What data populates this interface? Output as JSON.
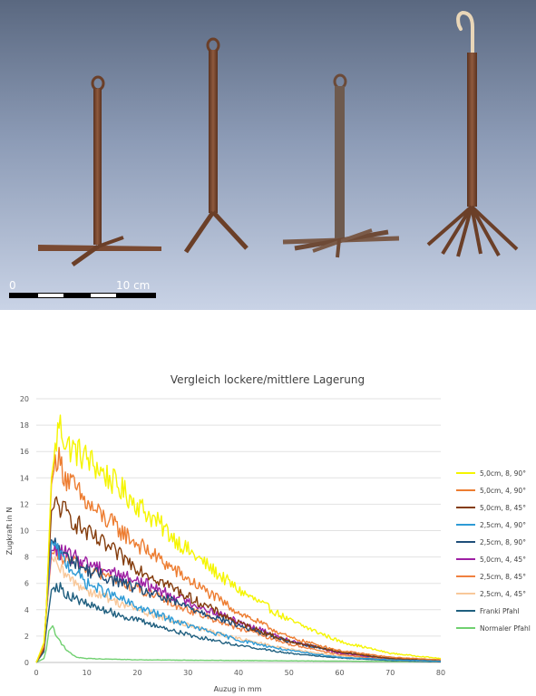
{
  "photo": {
    "scale_labels": [
      "0",
      "10 cm"
    ],
    "colors": {
      "background_top": "#5c6a82",
      "background_bottom": "#c9d3e6",
      "rod": "#7a4a32",
      "hook": "#e9d6b8"
    }
  },
  "chart_data": {
    "type": "line",
    "title": "Vergleich lockere/mittlere Lagerung",
    "xlabel": "Auzug in mm",
    "ylabel": "Zugkraft in N",
    "xlim": [
      0,
      80
    ],
    "ylim": [
      0,
      20
    ],
    "xticks": [
      "0",
      "10",
      "20",
      "30",
      "40",
      "50",
      "60",
      "70",
      "80"
    ],
    "yticks": [
      "0",
      "2",
      "4",
      "6",
      "8",
      "10",
      "12",
      "14",
      "16",
      "18",
      "20"
    ],
    "grid": true,
    "legend_position": "right",
    "series": [
      {
        "name": "5,0cm, 8, 90°",
        "color": "#f5f500",
        "x": [
          0,
          1.5,
          2,
          3,
          4.5,
          6,
          10,
          20,
          30,
          40,
          50,
          60,
          70,
          80
        ],
        "y": [
          0,
          1.5,
          4,
          14,
          18.2,
          16.5,
          15.5,
          12,
          8.5,
          5.5,
          3.2,
          1.6,
          0.7,
          0.3
        ]
      },
      {
        "name": "5,0cm, 4, 90°",
        "color": "#ed7d31",
        "x": [
          0,
          1.5,
          2,
          3,
          4,
          6,
          10,
          20,
          30,
          40,
          50,
          60,
          70,
          80
        ],
        "y": [
          0,
          1.2,
          4,
          13.5,
          15.7,
          14,
          12,
          9,
          6.3,
          3.8,
          1.9,
          0.9,
          0.4,
          0.2
        ]
      },
      {
        "name": "5,0cm, 8, 45°",
        "color": "#843c0c",
        "x": [
          0,
          1.5,
          2,
          3,
          4,
          6,
          10,
          20,
          30,
          40,
          50,
          60,
          70,
          80
        ],
        "y": [
          0,
          1,
          4,
          11.5,
          12,
          11.3,
          9.8,
          7.2,
          5,
          3,
          1.6,
          0.8,
          0.3,
          0.2
        ]
      },
      {
        "name": "2,5cm, 4, 90°",
        "color": "#2e9bd6",
        "x": [
          0,
          1.5,
          2,
          3,
          4,
          6,
          10,
          20,
          30,
          40,
          50,
          60,
          70,
          80
        ],
        "y": [
          0,
          1,
          4,
          9.2,
          8.5,
          7.5,
          6,
          4.2,
          2.8,
          1.7,
          0.9,
          0.4,
          0.2,
          0.1
        ]
      },
      {
        "name": "2,5cm, 8, 90°",
        "color": "#1f4e79",
        "x": [
          0,
          1.5,
          2,
          3,
          4,
          6,
          10,
          20,
          30,
          40,
          50,
          60,
          70,
          80
        ],
        "y": [
          0,
          1,
          4,
          9.3,
          8.8,
          8,
          7,
          5.6,
          4.2,
          2.8,
          1.6,
          0.8,
          0.3,
          0.1
        ]
      },
      {
        "name": "5,0cm, 4, 45°",
        "color": "#9e1fa3",
        "x": [
          0,
          1.5,
          2,
          3,
          4,
          6,
          10,
          20,
          30,
          40,
          50,
          60,
          70,
          80
        ],
        "y": [
          0,
          1,
          4,
          8.5,
          8.5,
          8.2,
          7.6,
          6.2,
          4.6,
          3.1,
          1.7,
          0.7,
          0.3,
          0.1
        ]
      },
      {
        "name": "2,5cm, 8, 45°",
        "color": "#f08040",
        "x": [
          0,
          1.5,
          2,
          3,
          4,
          6,
          10,
          20,
          30,
          40,
          50,
          60,
          70,
          80
        ],
        "y": [
          0,
          1,
          4,
          8.3,
          8.2,
          7.8,
          7.1,
          5.6,
          4,
          2.6,
          1.4,
          0.6,
          0.2,
          0.1
        ]
      },
      {
        "name": "2,5cm, 4, 45°",
        "color": "#f8c89a",
        "x": [
          0,
          1.5,
          2,
          3,
          4,
          6,
          10,
          20,
          30,
          40,
          50,
          60,
          70,
          80
        ],
        "y": [
          0,
          1,
          3.5,
          8,
          7.3,
          6.5,
          5.5,
          4,
          2.8,
          1.8,
          1,
          0.5,
          0.2,
          0.1
        ]
      },
      {
        "name": "Franki Pfahl",
        "color": "#1f5f7f",
        "x": [
          0,
          1.5,
          2,
          3,
          4,
          6,
          10,
          20,
          30,
          40,
          50,
          60,
          70,
          80
        ],
        "y": [
          0,
          0.8,
          2.5,
          5.5,
          5.9,
          5.2,
          4.4,
          3.2,
          2.1,
          1.3,
          0.7,
          0.35,
          0.15,
          0.05
        ]
      },
      {
        "name": "Normaler Pfahl",
        "color": "#70d070",
        "x": [
          0,
          1.5,
          2,
          2.5,
          3.3,
          4,
          6,
          8,
          10,
          20,
          40,
          60,
          80
        ],
        "y": [
          0,
          0.3,
          1,
          2.4,
          2.8,
          2,
          0.9,
          0.4,
          0.3,
          0.2,
          0.15,
          0.1,
          0.05
        ]
      }
    ]
  }
}
